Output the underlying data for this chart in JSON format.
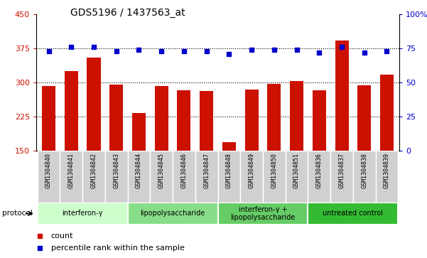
{
  "title": "GDS5196 / 1437563_at",
  "samples": [
    "GSM1304840",
    "GSM1304841",
    "GSM1304842",
    "GSM1304843",
    "GSM1304844",
    "GSM1304845",
    "GSM1304846",
    "GSM1304847",
    "GSM1304848",
    "GSM1304849",
    "GSM1304850",
    "GSM1304851",
    "GSM1304836",
    "GSM1304837",
    "GSM1304838",
    "GSM1304839"
  ],
  "counts": [
    292,
    325,
    355,
    295,
    233,
    293,
    283,
    282,
    170,
    284,
    297,
    303,
    283,
    393,
    294,
    318
  ],
  "percentiles": [
    73,
    76,
    76,
    73,
    74,
    73,
    73,
    73,
    71,
    74,
    74,
    74,
    72,
    76,
    72,
    73
  ],
  "bar_color": "#cc1100",
  "percentile_color": "#0000cc",
  "ylim_left": [
    150,
    450
  ],
  "ylim_right": [
    0,
    100
  ],
  "yticks_left": [
    150,
    225,
    300,
    375,
    450
  ],
  "yticks_right": [
    0,
    25,
    50,
    75,
    100
  ],
  "ytick_labels_right": [
    "0",
    "25",
    "50",
    "75",
    "100%"
  ],
  "grid_values": [
    225,
    300,
    375
  ],
  "protocols": [
    {
      "label": "interferon-γ",
      "start": 0,
      "end": 4,
      "color": "#ccffcc"
    },
    {
      "label": "lipopolysaccharide",
      "start": 4,
      "end": 8,
      "color": "#88dd88"
    },
    {
      "label": "interferon-γ +\nlipopolysaccharide",
      "start": 8,
      "end": 12,
      "color": "#66cc66"
    },
    {
      "label": "untreated control",
      "start": 12,
      "end": 16,
      "color": "#33bb33"
    }
  ],
  "protocol_label": "protocol",
  "legend_count_label": "count",
  "legend_percentile_label": "percentile rank within the sample",
  "tick_label_color_left": "#cc1100",
  "tick_label_color_right": "#0000cc",
  "sample_box_color": "#d0d0d0",
  "bar_width": 0.6
}
